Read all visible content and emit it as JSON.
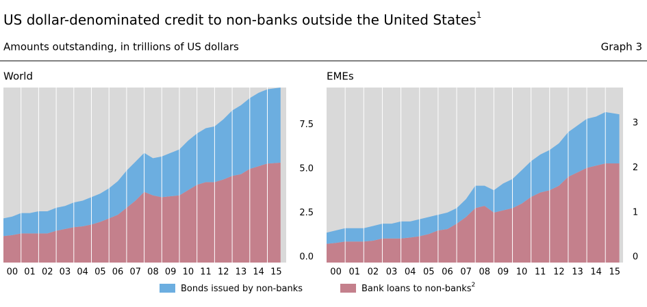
{
  "header": {
    "title": "US dollar-denominated credit to non-banks outside the United States",
    "title_note": "1",
    "subtitle": "Amounts outstanding, in trillions of US dollars",
    "graph_label": "Graph 3"
  },
  "chart_data": [
    {
      "type": "stacked_area",
      "title": "World",
      "x": [
        2000,
        2000.5,
        2001,
        2001.5,
        2002,
        2002.5,
        2003,
        2003.5,
        2004,
        2004.5,
        2005,
        2005.5,
        2006,
        2006.5,
        2007,
        2007.5,
        2008,
        2008.5,
        2009,
        2009.5,
        2010,
        2010.5,
        2011,
        2011.5,
        2012,
        2012.5,
        2013,
        2013.5,
        2014,
        2014.5,
        2015,
        2015.75
      ],
      "xlim": [
        2000,
        2016.07
      ],
      "xticks": [
        {
          "value": 2000.5,
          "label": "00"
        },
        {
          "value": 2001.5,
          "label": "01"
        },
        {
          "value": 2002.5,
          "label": "02"
        },
        {
          "value": 2003.5,
          "label": "03"
        },
        {
          "value": 2004.5,
          "label": "04"
        },
        {
          "value": 2005.5,
          "label": "05"
        },
        {
          "value": 2006.5,
          "label": "06"
        },
        {
          "value": 2007.5,
          "label": "07"
        },
        {
          "value": 2008.5,
          "label": "08"
        },
        {
          "value": 2009.5,
          "label": "09"
        },
        {
          "value": 2010.5,
          "label": "10"
        },
        {
          "value": 2011.5,
          "label": "11"
        },
        {
          "value": 2012.5,
          "label": "12"
        },
        {
          "value": 2013.5,
          "label": "13"
        },
        {
          "value": 2014.5,
          "label": "14"
        },
        {
          "value": 2015.5,
          "label": "15"
        }
      ],
      "xgrid": [
        2001,
        2002,
        2003,
        2004,
        2005,
        2006,
        2007,
        2008,
        2009,
        2010,
        2011,
        2012,
        2013,
        2014,
        2015
      ],
      "ylim": [
        -0.3,
        9.6
      ],
      "yticks": [
        {
          "value": 0,
          "label": "0.0"
        },
        2.5,
        {
          "value": 5,
          "label": "5.0"
        },
        7.5
      ],
      "series": [
        {
          "name": "Bonds issued by non-banks",
          "color": "#6caee0",
          "values": [
            1.0,
            1.05,
            1.15,
            1.15,
            1.25,
            1.25,
            1.3,
            1.3,
            1.4,
            1.45,
            1.55,
            1.6,
            1.7,
            1.9,
            2.1,
            2.2,
            2.2,
            2.1,
            2.3,
            2.45,
            2.6,
            2.8,
            2.9,
            3.05,
            3.15,
            3.4,
            3.7,
            3.9,
            4.0,
            4.15,
            4.2,
            4.25
          ]
        },
        {
          "name": "Bank loans to non-banks",
          "note": "2",
          "color": "#c4808c",
          "values": [
            1.2,
            1.25,
            1.35,
            1.35,
            1.35,
            1.35,
            1.5,
            1.6,
            1.7,
            1.75,
            1.85,
            2.0,
            2.2,
            2.4,
            2.8,
            3.2,
            3.7,
            3.5,
            3.4,
            3.45,
            3.5,
            3.8,
            4.1,
            4.25,
            4.25,
            4.4,
            4.6,
            4.7,
            5.0,
            5.15,
            5.3,
            5.35
          ]
        }
      ]
    },
    {
      "type": "stacked_area",
      "title": "EMEs",
      "x": [
        2000,
        2000.5,
        2001,
        2001.5,
        2002,
        2002.5,
        2003,
        2003.5,
        2004,
        2004.5,
        2005,
        2005.5,
        2006,
        2006.5,
        2007,
        2007.5,
        2008,
        2008.5,
        2009,
        2009.5,
        2010,
        2010.5,
        2011,
        2011.5,
        2012,
        2012.5,
        2013,
        2013.5,
        2014,
        2014.5,
        2015,
        2015.75
      ],
      "xlim": [
        2000,
        2015.95
      ],
      "xticks": [
        {
          "value": 2000.5,
          "label": "00"
        },
        {
          "value": 2001.5,
          "label": "01"
        },
        {
          "value": 2002.5,
          "label": "02"
        },
        {
          "value": 2003.5,
          "label": "03"
        },
        {
          "value": 2004.5,
          "label": "04"
        },
        {
          "value": 2005.5,
          "label": "05"
        },
        {
          "value": 2006.5,
          "label": "06"
        },
        {
          "value": 2007.5,
          "label": "07"
        },
        {
          "value": 2008.5,
          "label": "08"
        },
        {
          "value": 2009.5,
          "label": "09"
        },
        {
          "value": 2010.5,
          "label": "10"
        },
        {
          "value": 2011.5,
          "label": "11"
        },
        {
          "value": 2012.5,
          "label": "12"
        },
        {
          "value": 2013.5,
          "label": "13"
        },
        {
          "value": 2014.5,
          "label": "14"
        },
        {
          "value": 2015.5,
          "label": "15"
        }
      ],
      "xgrid": [
        2001,
        2002,
        2003,
        2004,
        2005,
        2006,
        2007,
        2008,
        2009,
        2010,
        2011,
        2012,
        2013,
        2014,
        2015
      ],
      "ylim": [
        -0.12,
        3.8
      ],
      "yticks": [
        0,
        1,
        2,
        3
      ],
      "series": [
        {
          "name": "Bonds issued by non-banks",
          "color": "#6caee0",
          "values": [
            0.25,
            0.28,
            0.3,
            0.3,
            0.3,
            0.33,
            0.33,
            0.33,
            0.38,
            0.36,
            0.38,
            0.38,
            0.35,
            0.37,
            0.35,
            0.4,
            0.5,
            0.45,
            0.5,
            0.6,
            0.65,
            0.75,
            0.8,
            0.85,
            0.9,
            0.95,
            1.0,
            1.05,
            1.1,
            1.1,
            1.15,
            1.1
          ]
        },
        {
          "name": "Bank loans to non-banks",
          "note": "2",
          "color": "#c4808c",
          "values": [
            0.3,
            0.32,
            0.35,
            0.35,
            0.35,
            0.37,
            0.42,
            0.42,
            0.42,
            0.44,
            0.47,
            0.52,
            0.6,
            0.63,
            0.75,
            0.9,
            1.1,
            1.15,
            1.0,
            1.05,
            1.1,
            1.2,
            1.35,
            1.45,
            1.5,
            1.6,
            1.8,
            1.9,
            2.0,
            2.05,
            2.1,
            2.1
          ]
        }
      ]
    }
  ]
}
